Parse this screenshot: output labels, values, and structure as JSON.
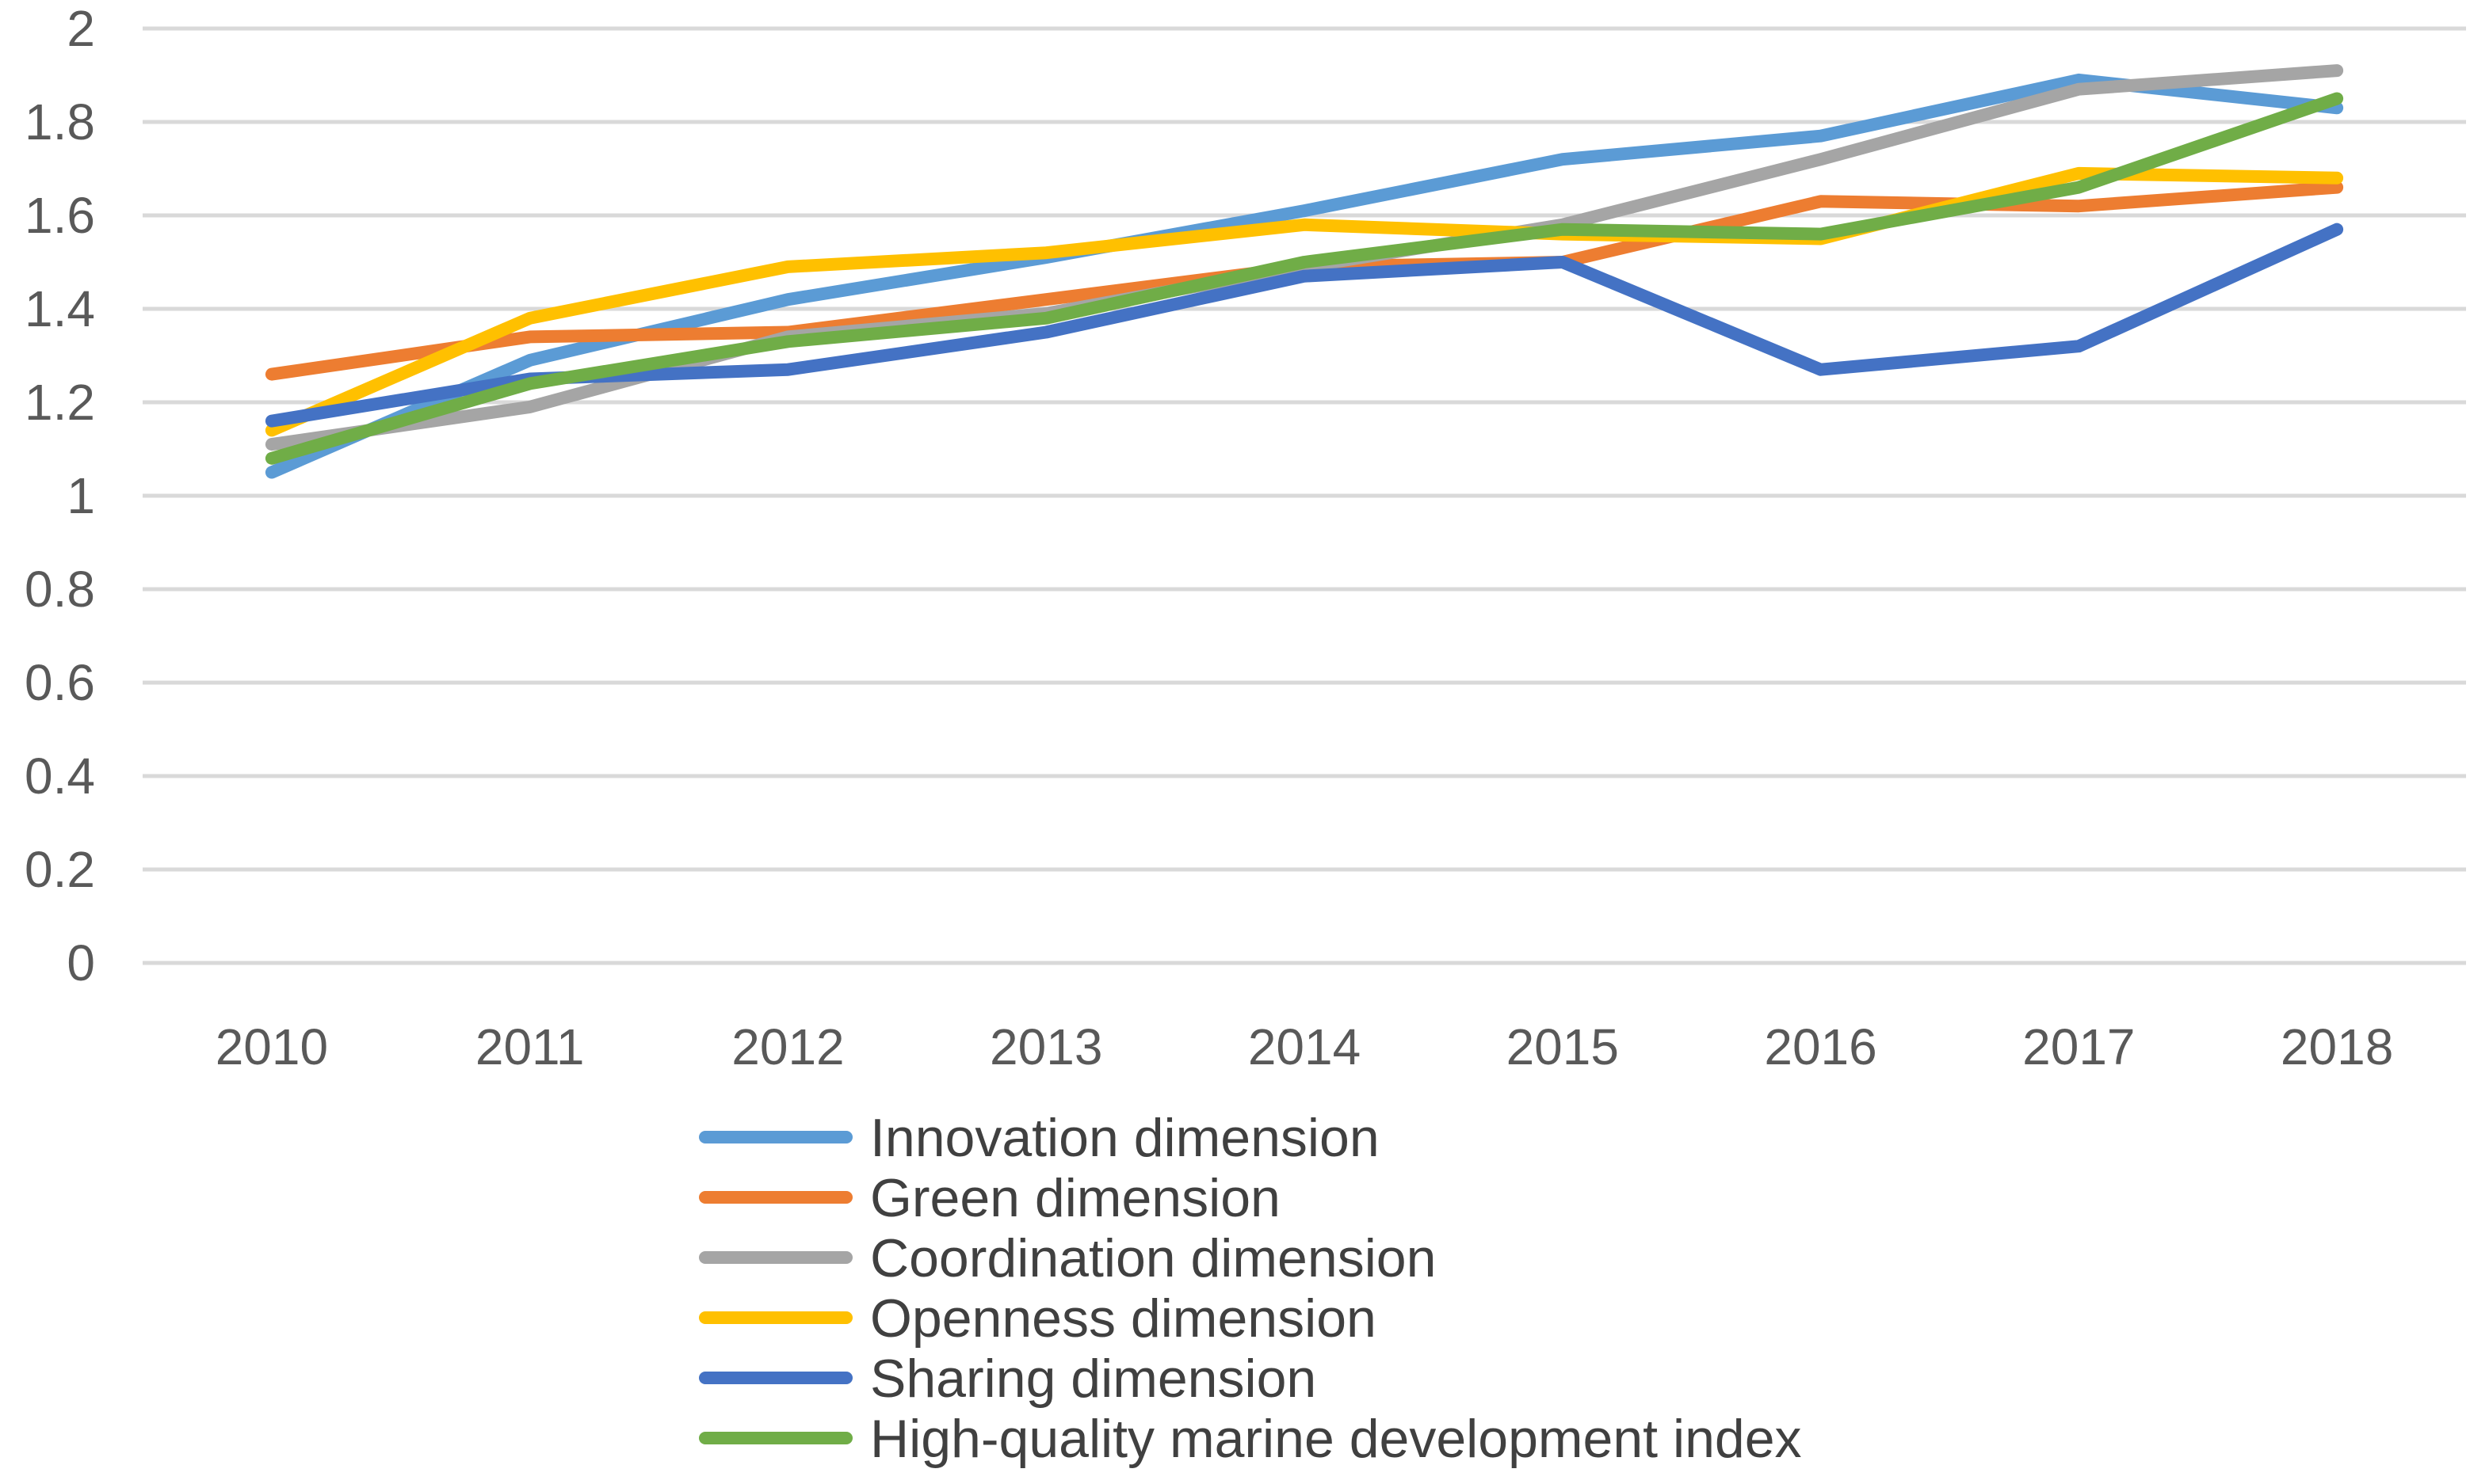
{
  "chart_data": {
    "type": "line",
    "title": "",
    "xlabel": "",
    "ylabel": "",
    "categories": [
      "2010",
      "2011",
      "2012",
      "2013",
      "2014",
      "2015",
      "2016",
      "2017",
      "2018"
    ],
    "ylim": [
      0,
      2
    ],
    "yticks": [
      0,
      0.2,
      0.4,
      0.6,
      0.8,
      1,
      1.2,
      1.4,
      1.6,
      1.8,
      2
    ],
    "ytick_labels": [
      "0",
      "0.2",
      "0.4",
      "0.6",
      "0.8",
      "1",
      "1.2",
      "1.4",
      "1.6",
      "1.8",
      "2"
    ],
    "grid": true,
    "legend_position": "bottom",
    "series": [
      {
        "name": "Innovation dimension",
        "color": "#5B9BD5",
        "values": [
          1.05,
          1.29,
          1.42,
          1.51,
          1.61,
          1.72,
          1.77,
          1.89,
          1.83
        ]
      },
      {
        "name": "Green dimension",
        "color": "#ED7D31",
        "values": [
          1.26,
          1.34,
          1.35,
          1.42,
          1.49,
          1.5,
          1.63,
          1.62,
          1.66
        ]
      },
      {
        "name": "Coordination dimension",
        "color": "#A5A5A5",
        "values": [
          1.11,
          1.19,
          1.34,
          1.39,
          1.49,
          1.58,
          1.72,
          1.87,
          1.91
        ]
      },
      {
        "name": "Openness dimension",
        "color": "#FFC000",
        "values": [
          1.14,
          1.38,
          1.49,
          1.52,
          1.58,
          1.56,
          1.55,
          1.69,
          1.68
        ]
      },
      {
        "name": "Sharing dimension",
        "color": "#4472C4",
        "values": [
          1.16,
          1.25,
          1.27,
          1.35,
          1.47,
          1.5,
          1.27,
          1.32,
          1.57
        ]
      },
      {
        "name": "High-quality marine development index",
        "color": "#70AD47",
        "values": [
          1.08,
          1.24,
          1.33,
          1.38,
          1.5,
          1.57,
          1.56,
          1.66,
          1.85
        ]
      }
    ]
  }
}
